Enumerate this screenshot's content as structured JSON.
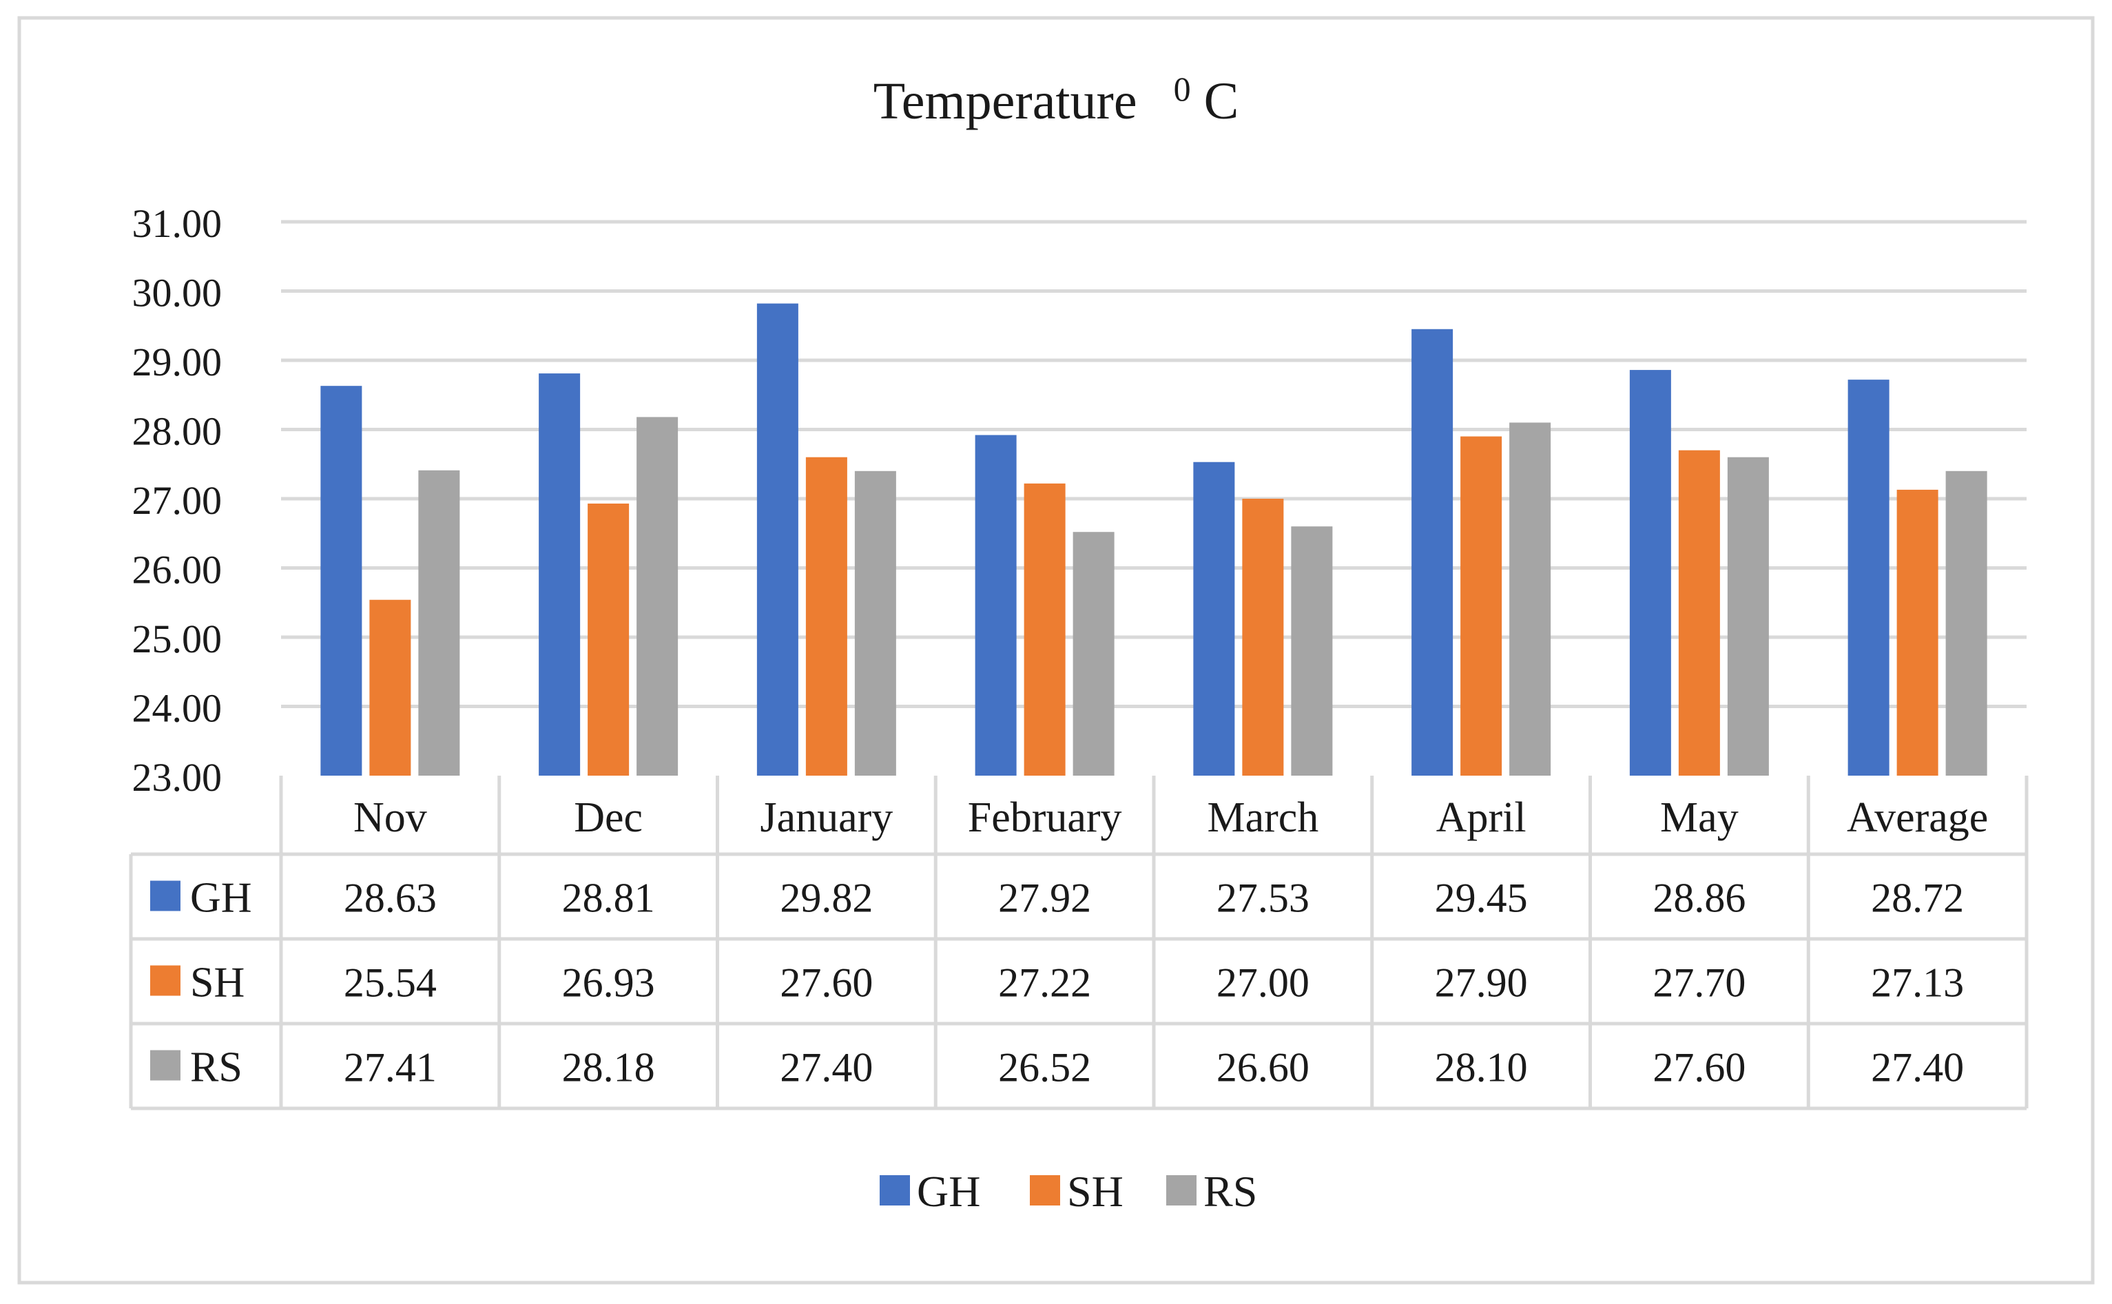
{
  "chart_data": {
    "type": "bar",
    "title_main": "Temperature",
    "title_sup": "0",
    "title_unit": "C",
    "categories": [
      "Nov",
      "Dec",
      "January",
      "February",
      "March",
      "April",
      "May",
      "Average"
    ],
    "series": [
      {
        "name": "GH",
        "color": "#4472C4",
        "values": [
          28.63,
          28.81,
          29.82,
          27.92,
          27.53,
          29.45,
          28.86,
          28.72
        ]
      },
      {
        "name": "SH",
        "color": "#ED7D31",
        "values": [
          25.54,
          26.93,
          27.6,
          27.22,
          27.0,
          27.9,
          27.7,
          27.13
        ]
      },
      {
        "name": "RS",
        "color": "#A5A5A5",
        "values": [
          27.41,
          28.18,
          27.4,
          26.52,
          26.6,
          28.1,
          27.6,
          27.4
        ]
      }
    ],
    "value_labels": [
      [
        "28.63",
        "28.81",
        "29.82",
        "27.92",
        "27.53",
        "29.45",
        "28.86",
        "28.72"
      ],
      [
        "25.54",
        "26.93",
        "27.60",
        "27.22",
        "27.00",
        "27.90",
        "27.70",
        "27.13"
      ],
      [
        "27.41",
        "28.18",
        "27.40",
        "26.52",
        "26.60",
        "28.10",
        "27.60",
        "27.40"
      ]
    ],
    "y_ticks": [
      "23.00",
      "24.00",
      "25.00",
      "26.00",
      "27.00",
      "28.00",
      "29.00",
      "30.00",
      "31.00"
    ],
    "ylim": [
      23,
      31
    ],
    "grid": true,
    "legend": [
      "GH",
      "SH",
      "RS"
    ],
    "legend_placement": "bottom-center",
    "data_table": true
  }
}
